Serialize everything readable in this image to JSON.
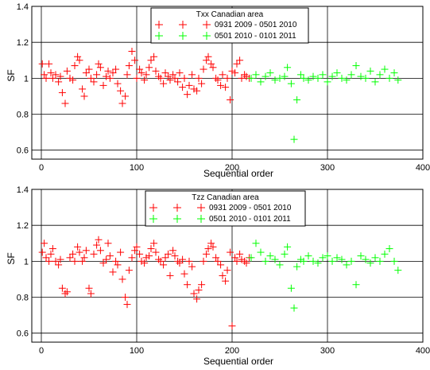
{
  "colors": {
    "series_a": "#ff0000",
    "series_b": "#00ff00",
    "grid": "#000000"
  },
  "chart_data": [
    {
      "type": "scatter",
      "legend_title": "Txx Canadian area",
      "legend_position": "top-center",
      "xlabel": "Sequential order",
      "ylabel": "SF",
      "xlim": [
        -10,
        400
      ],
      "ylim": [
        0.55,
        1.4
      ],
      "xticks": [
        "0",
        "100",
        "200",
        "300",
        "400"
      ],
      "yticks": [
        "0.6",
        "0.8",
        "1",
        "1.2",
        "1.4"
      ],
      "grid": true,
      "series": [
        {
          "name": "0931 2009 - 0501 2010",
          "color": "#ff0000",
          "x": [
            1,
            3,
            5,
            8,
            10,
            12,
            15,
            18,
            20,
            22,
            25,
            27,
            30,
            33,
            35,
            38,
            40,
            43,
            45,
            47,
            50,
            52,
            55,
            58,
            60,
            62,
            65,
            68,
            70,
            72,
            75,
            78,
            80,
            83,
            85,
            88,
            90,
            92,
            95,
            98,
            100,
            103,
            105,
            108,
            110,
            113,
            115,
            118,
            120,
            123,
            125,
            128,
            130,
            133,
            135,
            138,
            140,
            143,
            145,
            148,
            150,
            153,
            155,
            158,
            160,
            163,
            165,
            168,
            170,
            173,
            175,
            178,
            180,
            183,
            185,
            188,
            190,
            193,
            195,
            198,
            200,
            203,
            205,
            208,
            210,
            213,
            215,
            218
          ],
          "y": [
            1.08,
            1.02,
            1.0,
            1.08,
            1.03,
            1.0,
            1.02,
            0.98,
            1.01,
            0.92,
            0.86,
            1.04,
            1.0,
            0.99,
            1.07,
            1.12,
            1.1,
            0.94,
            0.9,
            1.03,
            1.05,
            1.0,
            0.98,
            1.02,
            1.08,
            1.06,
            0.96,
            1.01,
            1.04,
            1.0,
            1.03,
            1.05,
            0.97,
            0.93,
            0.86,
            0.9,
            1.02,
            1.07,
            1.15,
            1.1,
            1.0,
            1.05,
            1.03,
            0.99,
            1.02,
            1.06,
            1.1,
            1.12,
            1.04,
            1.01,
            1.0,
            0.97,
            1.03,
            1.01,
            0.99,
            1.02,
            1.0,
            0.98,
            1.03,
            0.95,
            1.0,
            0.91,
            0.96,
            1.02,
            0.94,
            0.93,
            1.0,
            0.97,
            1.05,
            1.1,
            1.12,
            1.08,
            1.06,
            1.0,
            0.99,
            0.96,
            1.02,
            0.95,
            1.0,
            0.88,
            1.04,
            1.03,
            1.08,
            1.1,
            1.0,
            1.02,
            1.01,
            1.0
          ]
        },
        {
          "name": "0501 2010 - 0101 2011",
          "color": "#00ff00",
          "x": [
            220,
            225,
            230,
            235,
            240,
            245,
            250,
            255,
            258,
            262,
            265,
            268,
            272,
            275,
            280,
            285,
            290,
            295,
            300,
            305,
            310,
            315,
            320,
            325,
            330,
            335,
            340,
            345,
            350,
            355,
            360,
            365,
            370,
            374
          ],
          "y": [
            1.0,
            1.02,
            0.98,
            1.01,
            1.03,
            0.99,
            1.0,
            1.01,
            1.06,
            0.97,
            0.66,
            0.88,
            1.02,
            1.0,
            0.99,
            1.01,
            1.0,
            1.02,
            0.98,
            1.01,
            1.03,
            1.0,
            0.99,
            1.02,
            1.07,
            1.01,
            1.0,
            1.04,
            0.98,
            1.02,
            1.05,
            1.0,
            1.03,
            0.99
          ]
        }
      ]
    },
    {
      "type": "scatter",
      "legend_title": "Tzz Canadian area",
      "legend_position": "top-center",
      "xlabel": "Sequential order",
      "ylabel": "SF",
      "xlim": [
        -10,
        400
      ],
      "ylim": [
        0.55,
        1.4
      ],
      "xticks": [
        "0",
        "100",
        "200",
        "300",
        "400"
      ],
      "yticks": [
        "0.6",
        "0.8",
        "1",
        "1.2",
        "1.4"
      ],
      "grid": true,
      "series": [
        {
          "name": "0931 2009 - 0501 2010",
          "color": "#ff0000",
          "x": [
            1,
            3,
            5,
            8,
            10,
            12,
            15,
            18,
            20,
            22,
            25,
            27,
            30,
            33,
            35,
            38,
            40,
            43,
            45,
            47,
            50,
            52,
            55,
            58,
            60,
            62,
            65,
            68,
            70,
            72,
            75,
            78,
            80,
            83,
            85,
            88,
            90,
            92,
            95,
            98,
            100,
            103,
            105,
            108,
            110,
            113,
            115,
            118,
            120,
            123,
            125,
            128,
            130,
            133,
            135,
            138,
            140,
            143,
            145,
            148,
            150,
            153,
            155,
            158,
            160,
            163,
            165,
            168,
            170,
            173,
            175,
            178,
            180,
            183,
            185,
            188,
            190,
            193,
            195,
            198,
            200,
            203,
            205,
            208,
            210,
            213,
            215,
            218
          ],
          "y": [
            1.05,
            1.1,
            1.02,
            1.0,
            1.04,
            1.07,
            1.0,
            0.98,
            1.01,
            0.85,
            0.82,
            0.83,
            1.02,
            1.04,
            1.0,
            1.08,
            1.05,
            1.0,
            1.02,
            1.06,
            0.85,
            0.82,
            1.04,
            1.09,
            1.12,
            1.06,
            0.99,
            1.01,
            1.1,
            1.03,
            0.94,
            1.0,
            0.98,
            1.05,
            0.9,
            0.8,
            0.76,
            0.95,
            1.02,
            1.06,
            1.08,
            1.04,
            1.0,
            0.99,
            1.02,
            1.03,
            1.07,
            1.1,
            1.05,
            1.01,
            1.0,
            0.98,
            1.02,
            1.04,
            0.92,
            1.06,
            1.03,
            1.0,
            0.99,
            1.01,
            0.93,
            0.87,
            1.0,
            0.97,
            0.82,
            0.79,
            0.84,
            0.87,
            1.0,
            1.04,
            1.07,
            1.1,
            1.08,
            1.02,
            1.0,
            0.98,
            0.92,
            0.89,
            0.95,
            1.05,
            0.64,
            1.02,
            1.0,
            1.04,
            1.01,
            1.0,
            0.99,
            1.02
          ]
        },
        {
          "name": "0501 2010 - 0101 2011",
          "color": "#00ff00",
          "x": [
            220,
            225,
            230,
            235,
            240,
            245,
            250,
            255,
            258,
            262,
            265,
            268,
            272,
            275,
            280,
            285,
            290,
            295,
            300,
            305,
            310,
            315,
            320,
            325,
            330,
            335,
            340,
            345,
            350,
            355,
            360,
            365,
            370,
            374
          ],
          "y": [
            1.02,
            1.1,
            1.05,
            1.0,
            1.03,
            1.01,
            0.98,
            1.04,
            1.08,
            0.85,
            0.74,
            0.97,
            1.01,
            1.0,
            1.03,
            1.0,
            0.99,
            1.02,
            1.03,
            1.0,
            1.02,
            1.01,
            0.98,
            1.0,
            0.87,
            1.03,
            1.01,
            0.99,
            1.02,
            1.0,
            1.04,
            1.07,
            1.0,
            0.95
          ]
        }
      ]
    }
  ]
}
